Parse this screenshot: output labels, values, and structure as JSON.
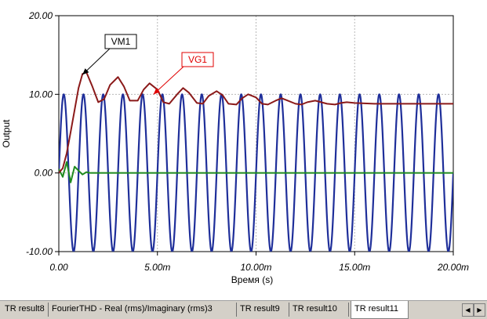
{
  "chart_data": {
    "type": "line",
    "title": "",
    "xlabel": "Время (s)",
    "ylabel": "Output",
    "xlim": [
      0,
      0.02
    ],
    "ylim": [
      -10,
      20
    ],
    "x_ticks": [
      {
        "value": 0,
        "label": "0.00"
      },
      {
        "value": 0.005,
        "label": "5.00m"
      },
      {
        "value": 0.01,
        "label": "10.00m"
      },
      {
        "value": 0.015,
        "label": "15.00m"
      },
      {
        "value": 0.02,
        "label": "20.00m"
      }
    ],
    "y_ticks": [
      {
        "value": -10,
        "label": "-10.00"
      },
      {
        "value": 0,
        "label": "0.00"
      },
      {
        "value": 10,
        "label": "10.00"
      },
      {
        "value": 20,
        "label": "20.00"
      }
    ],
    "grid": true,
    "series": [
      {
        "name": "VG1",
        "color": "#1f2f9a",
        "kind": "sine",
        "amplitude": 10,
        "frequency": 1000,
        "offset": 0
      },
      {
        "name": "VM1",
        "color": "#8b1a1a",
        "x": [
          0,
          0.0002,
          0.0004,
          0.0006,
          0.0008,
          0.001,
          0.0012,
          0.0014,
          0.0017,
          0.002,
          0.0023,
          0.0026,
          0.003,
          0.0033,
          0.0036,
          0.004,
          0.0043,
          0.0046,
          0.005,
          0.0053,
          0.0056,
          0.006,
          0.0063,
          0.0066,
          0.007,
          0.0073,
          0.0076,
          0.008,
          0.0083,
          0.0086,
          0.009,
          0.0093,
          0.0096,
          0.01,
          0.0103,
          0.0106,
          0.011,
          0.0113,
          0.0116,
          0.012,
          0.0123,
          0.0126,
          0.013,
          0.0133,
          0.0136,
          0.014,
          0.0143,
          0.0146,
          0.015,
          0.016,
          0.017,
          0.018,
          0.019,
          0.02
        ],
        "y": [
          0,
          0.6,
          2.5,
          5.2,
          8.0,
          10.8,
          12.6,
          12.8,
          11.0,
          9.0,
          9.4,
          11.2,
          12.2,
          11.0,
          9.2,
          9.2,
          10.6,
          11.4,
          10.6,
          9.0,
          8.8,
          10.0,
          10.8,
          10.2,
          8.9,
          8.8,
          9.8,
          10.4,
          9.9,
          8.8,
          8.7,
          9.5,
          10.0,
          9.6,
          8.8,
          8.7,
          9.2,
          9.5,
          9.2,
          8.8,
          8.7,
          9.0,
          9.2,
          9.0,
          8.8,
          8.7,
          8.9,
          9.0,
          8.9,
          8.8,
          8.8,
          8.8,
          8.8,
          8.8
        ]
      },
      {
        "name": "",
        "color": "#1f8a1f",
        "x": [
          0,
          0.0002,
          0.0004,
          0.0006,
          0.0008,
          0.001,
          0.0012,
          0.0014,
          0.0016,
          0.0018,
          0.002,
          0.005,
          0.01,
          0.015,
          0.02
        ],
        "y": [
          0.5,
          -0.5,
          1.4,
          -1.2,
          0.8,
          0.3,
          -0.2,
          0.1,
          0,
          0,
          0,
          0,
          0,
          0,
          0
        ]
      }
    ],
    "annotations": [
      {
        "text": "VM1",
        "color": "#000000",
        "target_x": 0.0012,
        "target_y": 12.5
      },
      {
        "text": "VG1",
        "color": "#e00000",
        "target_x": 0.0048,
        "target_y": 10.0
      }
    ]
  },
  "tabs": [
    {
      "label": "TR result8",
      "active": false
    },
    {
      "label": "FourierTHD - Real (rms)/Imaginary (rms)3",
      "active": false
    },
    {
      "label": "TR result9",
      "active": false
    },
    {
      "label": "TR result10",
      "active": false
    },
    {
      "label": "TR result11",
      "active": true
    }
  ],
  "scroll_icons": [
    "scroll-left-icon",
    "scroll-right-icon"
  ]
}
